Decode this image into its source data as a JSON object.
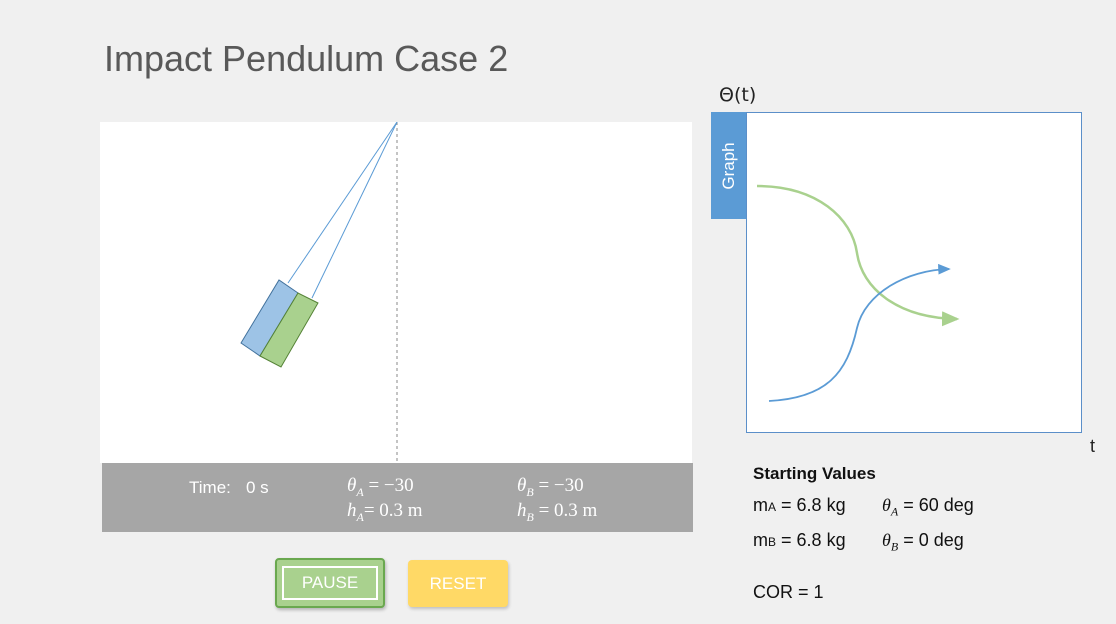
{
  "title": "Impact Pendulum Case 2",
  "info_bar": {
    "time_label": "Time:",
    "time_value": "0 s",
    "theta_a_value": "= −30",
    "h_a_value": "= 0.3 m",
    "theta_b_value": "= −30",
    "h_b_value": "= 0.3 m"
  },
  "buttons": {
    "pause_label": "PAUSE",
    "reset_label": "RESET"
  },
  "graph": {
    "y_label": "Θ(t)",
    "x_label": "t",
    "tab_label": "Graph"
  },
  "starting_values": {
    "heading": "Starting Values",
    "mass_a": "= 6.8 kg",
    "theta_a": "= 60 deg",
    "mass_b": "= 6.8 kg",
    "theta_b": "= 0 deg",
    "cor": "COR = 1"
  },
  "colors": {
    "block_a": "#9dc3e6",
    "block_b": "#a9d18e",
    "curve_a": "#5b9bd5",
    "curve_b": "#a9d18e"
  }
}
